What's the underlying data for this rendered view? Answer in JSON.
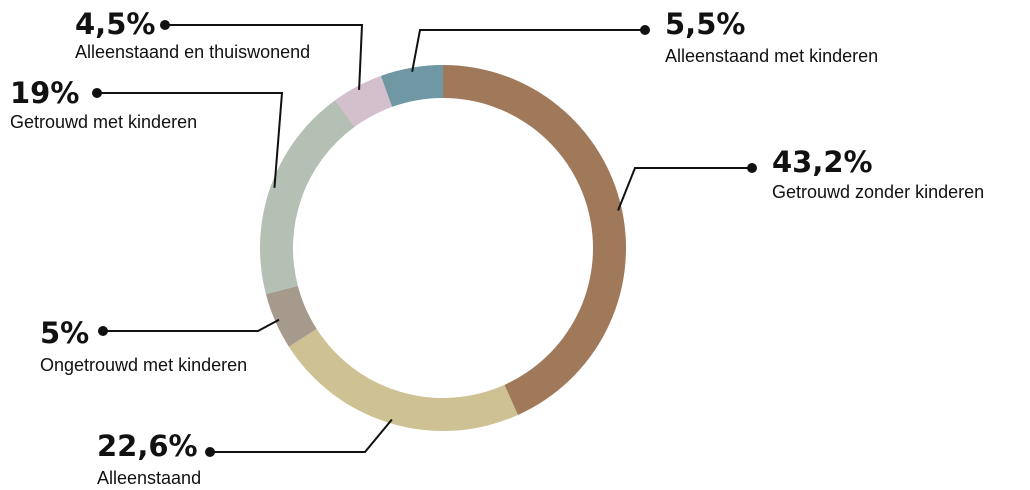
{
  "chart_data": {
    "type": "pie",
    "categories": [
      "Getrouwd zonder kinderen",
      "Alleenstaand",
      "Ongetrouwd met kinderen",
      "Getrouwd met kinderen",
      "Alleenstaand en thuiswonend",
      "Alleenstaand met kinderen"
    ],
    "values": [
      43.2,
      22.6,
      5,
      19,
      4.5,
      5.5
    ],
    "value_labels": [
      "43,2%",
      "22,6%",
      "5%",
      "19%",
      "4,5%",
      "5,5%"
    ],
    "colors": [
      "#a0785a",
      "#cec193",
      "#a59a8c",
      "#b5c0b4",
      "#d4bfcd",
      "#7097a4"
    ]
  }
}
